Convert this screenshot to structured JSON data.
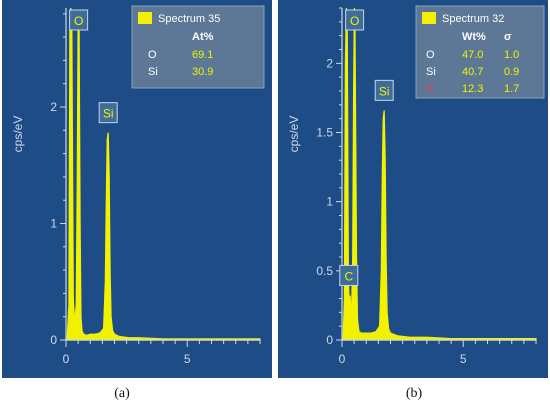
{
  "colors": {
    "background": "#1d4c86",
    "spectrum": "#f2f200",
    "axis": "#cfd8e6",
    "legend_bg": "#5c7896",
    "legend_text": "#ffffff",
    "value_text": "#f2f200",
    "carbon_label": "#ff4040",
    "peak_label_bg": "#3e6d9c"
  },
  "captions": [
    "(a)",
    "(b)"
  ],
  "chart_data": [
    {
      "type": "line",
      "title": "",
      "xlabel": "",
      "ylabel": "cps/eV",
      "xlim": [
        0,
        8
      ],
      "ylim": [
        0,
        2.85
      ],
      "x_ticks": [
        "0",
        "5"
      ],
      "y_ticks": [
        "0",
        "1",
        "2"
      ],
      "y_tick_values": [
        0,
        1,
        2
      ],
      "grid": false,
      "legend": {
        "placement": "top-right",
        "series_name": "Spectrum 35",
        "columns": [
          "",
          "At%"
        ],
        "rows": [
          {
            "element": "O",
            "values": [
              "69.1"
            ]
          },
          {
            "element": "Si",
            "values": [
              "30.9"
            ]
          }
        ]
      },
      "peak_labels": [
        {
          "label": "O",
          "x": 0.52
        },
        {
          "label": "Si",
          "x": 1.74
        }
      ],
      "series": [
        {
          "name": "Spectrum 35",
          "x": [
            0,
            0.05,
            0.12,
            0.16,
            0.2,
            0.24,
            0.3,
            0.36,
            0.42,
            0.46,
            0.5,
            0.52,
            0.54,
            0.58,
            0.62,
            0.66,
            0.72,
            0.85,
            1.0,
            1.2,
            1.4,
            1.55,
            1.62,
            1.66,
            1.7,
            1.74,
            1.78,
            1.82,
            1.86,
            1.92,
            2.0,
            2.2,
            2.6,
            3.0,
            4.0,
            5.0,
            6.0,
            7.0,
            8.0
          ],
          "y": [
            0,
            0.02,
            0.3,
            2.75,
            2.85,
            2.75,
            0.35,
            0.15,
            0.3,
            1.3,
            2.7,
            2.8,
            2.7,
            1.0,
            0.2,
            0.08,
            0.05,
            0.04,
            0.05,
            0.05,
            0.06,
            0.1,
            0.5,
            1.2,
            1.72,
            1.78,
            1.4,
            0.6,
            0.2,
            0.08,
            0.05,
            0.03,
            0.02,
            0.02,
            0.01,
            0.01,
            0.01,
            0.01,
            0.01
          ]
        }
      ]
    },
    {
      "type": "line",
      "title": "",
      "xlabel": "",
      "ylabel": "cps/eV",
      "xlim": [
        0,
        8
      ],
      "ylim": [
        0,
        2.4
      ],
      "x_ticks": [
        "0",
        "5"
      ],
      "y_ticks": [
        "0",
        "0.5",
        "1",
        "1.5",
        "2"
      ],
      "y_tick_values": [
        0,
        0.5,
        1,
        1.5,
        2
      ],
      "grid": false,
      "legend": {
        "placement": "top-right",
        "series_name": "Spectrum 32",
        "columns": [
          "",
          "Wt%",
          "σ"
        ],
        "rows": [
          {
            "element": "O",
            "values": [
              "47.0",
              "1.0"
            ]
          },
          {
            "element": "Si",
            "values": [
              "40.7",
              "0.9"
            ]
          },
          {
            "element": "C",
            "values": [
              "12.3",
              "1.7"
            ]
          }
        ]
      },
      "peak_labels": [
        {
          "label": "C",
          "x": 0.28
        },
        {
          "label": "O",
          "x": 0.52
        },
        {
          "label": "Si",
          "x": 1.74
        }
      ],
      "series": [
        {
          "name": "Spectrum 32",
          "x": [
            0,
            0.05,
            0.1,
            0.14,
            0.18,
            0.22,
            0.26,
            0.28,
            0.31,
            0.34,
            0.37,
            0.4,
            0.44,
            0.48,
            0.51,
            0.53,
            0.56,
            0.6,
            0.64,
            0.7,
            0.8,
            1.0,
            1.2,
            1.4,
            1.55,
            1.62,
            1.66,
            1.7,
            1.74,
            1.78,
            1.82,
            1.86,
            1.92,
            2.0,
            2.3,
            2.8,
            3.5,
            4.5,
            5.5,
            6.5,
            8.0
          ],
          "y": [
            0,
            0.02,
            0.3,
            2.0,
            2.4,
            2.2,
            0.6,
            0.35,
            0.2,
            0.32,
            0.15,
            0.25,
            0.6,
            1.8,
            2.4,
            2.35,
            1.6,
            0.6,
            0.15,
            0.06,
            0.05,
            0.05,
            0.05,
            0.06,
            0.1,
            0.5,
            1.2,
            1.6,
            1.66,
            1.3,
            0.6,
            0.2,
            0.08,
            0.05,
            0.03,
            0.02,
            0.02,
            0.01,
            0.01,
            0.01,
            0.01
          ]
        }
      ]
    }
  ]
}
